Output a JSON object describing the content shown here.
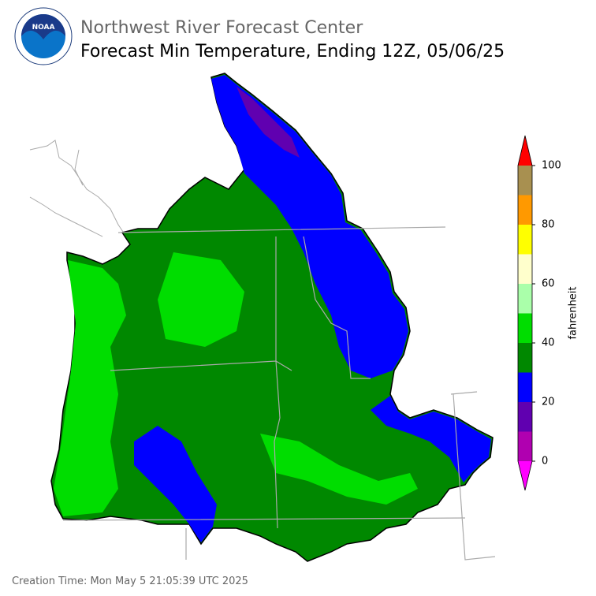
{
  "header": {
    "title": "Northwest River Forecast Center",
    "subtitle": "Forecast Min Temperature, Ending 12Z, 05/06/25",
    "logo_text": "NOAA"
  },
  "colorbar": {
    "label": "fahrenheit",
    "bounds": [
      0,
      10,
      20,
      30,
      40,
      50,
      60,
      70,
      80,
      90,
      100
    ],
    "colors": [
      "#b000b0",
      "#6000b0",
      "#0000ff",
      "#008800",
      "#00dd00",
      "#aaffaa",
      "#ffffcc",
      "#ffff00",
      "#ff9900",
      "#a89050"
    ],
    "under_color": "#ff00ff",
    "over_color": "#ff0000",
    "ticks": [
      0,
      20,
      40,
      60,
      80,
      100
    ]
  },
  "footer": {
    "creation_time": "Creation Time: Mon May 5 21:05:39 UTC 2025"
  }
}
